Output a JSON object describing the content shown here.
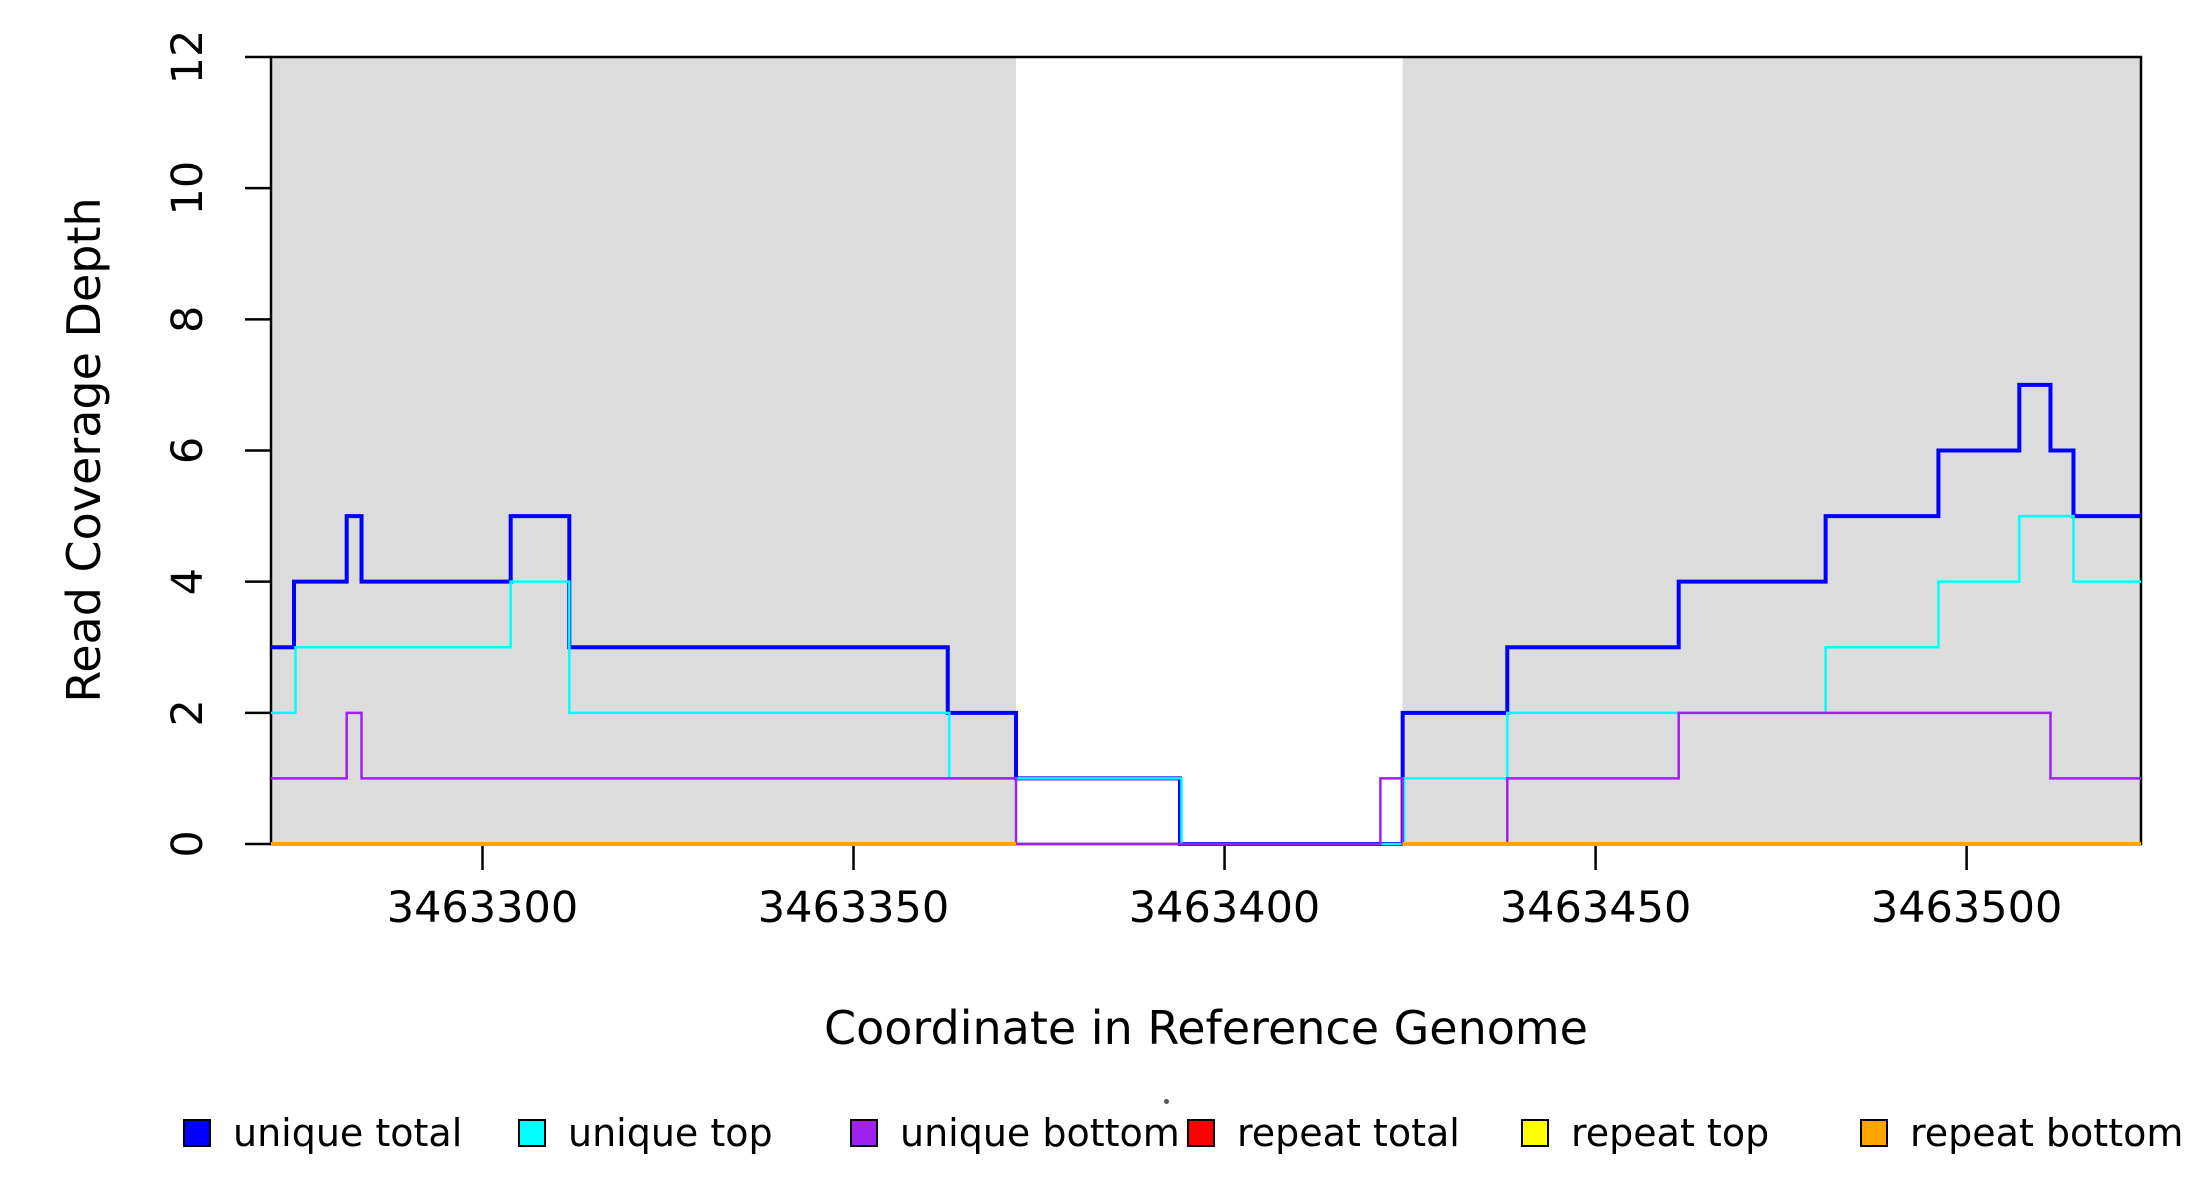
{
  "chart_data": {
    "type": "step",
    "title": "",
    "xlabel": "Coordinate in Reference Genome",
    "ylabel": "Read Coverage Depth",
    "xlim": [
      3463271.5,
      3463523.5
    ],
    "ylim": [
      0,
      12
    ],
    "x_ticks": [
      3463300,
      3463350,
      3463400,
      3463450,
      3463500
    ],
    "y_ticks": [
      0,
      2,
      4,
      6,
      8,
      10,
      12
    ],
    "grid": "off",
    "legend_position": "bottom",
    "background_color": "#ffffff",
    "shaded_color": "#dcdcdc",
    "axis_color": "#000000",
    "shaded_regions": [
      [
        3463271.5,
        3463371.9
      ],
      [
        3463424.0,
        3463523.5
      ]
    ],
    "series": [
      {
        "name": "unique total",
        "color": "#0000ff",
        "line_width": 4,
        "points": [
          [
            3463271.5,
            3
          ],
          [
            3463274.6,
            4
          ],
          [
            3463281.7,
            5
          ],
          [
            3463283.7,
            4
          ],
          [
            3463303.8,
            5
          ],
          [
            3463311.7,
            3
          ],
          [
            3463362.7,
            2
          ],
          [
            3463371.9,
            1
          ],
          [
            3463394.0,
            0
          ],
          [
            3463424.0,
            2
          ],
          [
            3463438.1,
            3
          ],
          [
            3463461.2,
            4
          ],
          [
            3463481.0,
            5
          ],
          [
            3463496.2,
            6
          ],
          [
            3463507.1,
            7
          ],
          [
            3463511.3,
            6
          ],
          [
            3463514.4,
            5
          ],
          [
            3463523.5,
            5
          ]
        ]
      },
      {
        "name": "unique top",
        "color": "#00ffff",
        "line_width": 2.5,
        "points": [
          [
            3463271.5,
            2
          ],
          [
            3463274.8,
            3
          ],
          [
            3463303.8,
            4
          ],
          [
            3463311.7,
            2
          ],
          [
            3463362.9,
            1
          ],
          [
            3463394.2,
            0
          ],
          [
            3463424.2,
            1
          ],
          [
            3463438.1,
            2
          ],
          [
            3463481.0,
            3
          ],
          [
            3463496.2,
            4
          ],
          [
            3463507.1,
            5
          ],
          [
            3463514.4,
            4
          ],
          [
            3463523.5,
            4
          ]
        ]
      },
      {
        "name": "unique bottom",
        "color": "#a020f0",
        "line_width": 2.5,
        "points": [
          [
            3463271.5,
            1
          ],
          [
            3463281.7,
            2
          ],
          [
            3463283.7,
            1
          ],
          [
            3463371.9,
            0
          ],
          [
            3463421.0,
            1
          ],
          [
            3463424.0,
            0
          ],
          [
            3463438.1,
            1
          ],
          [
            3463461.2,
            2
          ],
          [
            3463511.3,
            1
          ],
          [
            3463523.5,
            1
          ]
        ]
      },
      {
        "name": "repeat total",
        "color": "#ff0000",
        "line_width": 3.5,
        "points": [
          [
            3463271.5,
            0
          ],
          [
            3463371.9,
            0
          ],
          null,
          [
            3463424.0,
            0
          ],
          [
            3463523.5,
            0
          ]
        ]
      },
      {
        "name": "repeat top",
        "color": "#ffff00",
        "line_width": 2.5,
        "points": [
          [
            3463271.5,
            0
          ],
          [
            3463371.9,
            0
          ],
          null,
          [
            3463424.0,
            0
          ],
          [
            3463523.5,
            0
          ]
        ]
      },
      {
        "name": "repeat bottom",
        "color": "#ffa500",
        "line_width": 4,
        "points": [
          [
            3463271.5,
            0
          ],
          [
            3463371.9,
            0
          ],
          null,
          [
            3463424.0,
            0
          ],
          [
            3463523.5,
            0
          ]
        ]
      }
    ],
    "legend": [
      {
        "label": "unique total",
        "color": "#0000ff"
      },
      {
        "label": "unique top",
        "color": "#00ffff"
      },
      {
        "label": "unique bottom",
        "color": "#a020f0"
      },
      {
        "label": "repeat total",
        "color": "#ff0000"
      },
      {
        "label": "repeat top",
        "color": "#ffff00"
      },
      {
        "label": "repeat bottom",
        "color": "#ffa500"
      }
    ]
  }
}
